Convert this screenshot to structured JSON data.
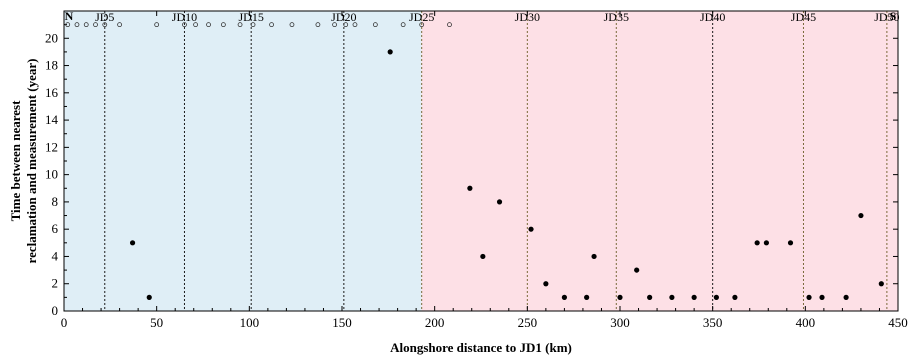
{
  "chart_data": {
    "type": "scatter",
    "title": "",
    "xlabel": "Alongshore distance to JD1 (km)",
    "ylabel_line1": "Time between nearest",
    "ylabel_line2": "reclamation and measurement (year)",
    "xlim": [
      0,
      450
    ],
    "ylim": [
      0,
      22
    ],
    "xticks": [
      0,
      50,
      100,
      150,
      200,
      250,
      300,
      350,
      400,
      450
    ],
    "yticks": [
      0,
      2,
      4,
      6,
      8,
      10,
      12,
      14,
      16,
      18,
      20
    ],
    "grid": false,
    "legend": "none",
    "north_label": "N",
    "south_label": "S",
    "regions": [
      {
        "x0": 0,
        "x1": 193,
        "color": "#dfeef6"
      },
      {
        "x0": 193,
        "x1": 450,
        "color": "#fde0e6"
      }
    ],
    "jd_markers": [
      {
        "label": "JD5",
        "x": 22,
        "color": "#1a1a1a"
      },
      {
        "label": "JD10",
        "x": 65,
        "color": "#1a1a1a"
      },
      {
        "label": "JD15",
        "x": 101,
        "color": "#1a1a1a"
      },
      {
        "label": "JD20",
        "x": 151,
        "color": "#1a1a1a"
      },
      {
        "label": "JD25",
        "x": 193,
        "color": "#7a6a3a"
      },
      {
        "label": "JD30",
        "x": 250,
        "color": "#7a6a3a"
      },
      {
        "label": "JD35",
        "x": 298,
        "color": "#7a6a3a"
      },
      {
        "label": "JD40",
        "x": 350,
        "color": "#1a1a1a"
      },
      {
        "label": "JD45",
        "x": 399,
        "color": "#7a6a3a"
      },
      {
        "label": "JD50",
        "x": 444,
        "color": "#7a6a3a"
      }
    ],
    "series": [
      {
        "marker": "filled",
        "points": [
          {
            "x": 37,
            "y": 5
          },
          {
            "x": 46,
            "y": 1
          },
          {
            "x": 176,
            "y": 19
          },
          {
            "x": 219,
            "y": 9
          },
          {
            "x": 226,
            "y": 4
          },
          {
            "x": 235,
            "y": 8
          },
          {
            "x": 252,
            "y": 6
          },
          {
            "x": 260,
            "y": 2
          },
          {
            "x": 270,
            "y": 1
          },
          {
            "x": 282,
            "y": 1
          },
          {
            "x": 286,
            "y": 4
          },
          {
            "x": 300,
            "y": 1
          },
          {
            "x": 309,
            "y": 3
          },
          {
            "x": 316,
            "y": 1
          },
          {
            "x": 328,
            "y": 1
          },
          {
            "x": 340,
            "y": 1
          },
          {
            "x": 352,
            "y": 1
          },
          {
            "x": 362,
            "y": 1
          },
          {
            "x": 374,
            "y": 5
          },
          {
            "x": 379,
            "y": 5
          },
          {
            "x": 392,
            "y": 5
          },
          {
            "x": 402,
            "y": 1
          },
          {
            "x": 409,
            "y": 1
          },
          {
            "x": 422,
            "y": 1
          },
          {
            "x": 430,
            "y": 7
          },
          {
            "x": 441,
            "y": 2
          }
        ]
      },
      {
        "marker": "open",
        "points": [
          {
            "x": 2,
            "y": 21
          },
          {
            "x": 7,
            "y": 21
          },
          {
            "x": 12,
            "y": 21
          },
          {
            "x": 17,
            "y": 21
          },
          {
            "x": 22,
            "y": 21
          },
          {
            "x": 30,
            "y": 21
          },
          {
            "x": 50,
            "y": 21
          },
          {
            "x": 65,
            "y": 21
          },
          {
            "x": 71,
            "y": 21
          },
          {
            "x": 78,
            "y": 21
          },
          {
            "x": 86,
            "y": 21
          },
          {
            "x": 95,
            "y": 21
          },
          {
            "x": 102,
            "y": 21
          },
          {
            "x": 112,
            "y": 21
          },
          {
            "x": 123,
            "y": 21
          },
          {
            "x": 137,
            "y": 21
          },
          {
            "x": 146,
            "y": 21
          },
          {
            "x": 152,
            "y": 21
          },
          {
            "x": 157,
            "y": 21
          },
          {
            "x": 168,
            "y": 21
          },
          {
            "x": 183,
            "y": 21
          },
          {
            "x": 193,
            "y": 21
          },
          {
            "x": 208,
            "y": 21
          }
        ]
      }
    ]
  }
}
